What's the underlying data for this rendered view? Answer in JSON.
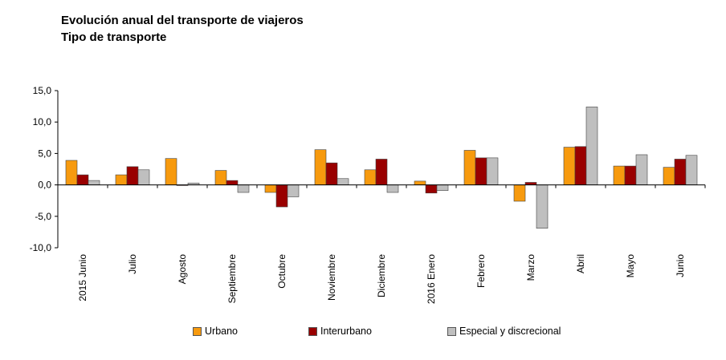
{
  "chart_data": {
    "type": "bar",
    "title": "Evolución anual del transporte de viajeros",
    "subtitle": "Tipo de transporte",
    "categories": [
      "2015 Junio",
      "Julio",
      "Agosto",
      "Septiembre",
      "Octubre",
      "Noviembre",
      "Diciembre",
      "2016 Enero",
      "Febrero",
      "Marzo",
      "Abril",
      "Mayo",
      "Junio"
    ],
    "series": [
      {
        "name": "Urbano",
        "color": "#f79a0e",
        "values": [
          3.9,
          1.6,
          4.2,
          2.3,
          -1.2,
          5.6,
          2.4,
          0.6,
          5.5,
          -2.6,
          6.0,
          3.0,
          2.8
        ]
      },
      {
        "name": "Interurbano",
        "color": "#990000",
        "values": [
          1.6,
          2.9,
          -0.1,
          0.7,
          -3.5,
          3.5,
          4.1,
          -1.3,
          4.3,
          0.4,
          6.1,
          3.0,
          4.1
        ]
      },
      {
        "name": "Especial y discrecional",
        "color": "#bfbfbf",
        "values": [
          0.7,
          2.4,
          0.3,
          -1.2,
          -1.9,
          1.0,
          -1.2,
          -0.9,
          4.3,
          -6.9,
          12.4,
          4.8,
          4.7
        ]
      }
    ],
    "ylim": [
      -10,
      15
    ],
    "yticks": [
      "15,0",
      "10,0",
      "5,0",
      "0,0",
      "-5,0",
      "-10,0"
    ],
    "legend_position": "bottom"
  }
}
